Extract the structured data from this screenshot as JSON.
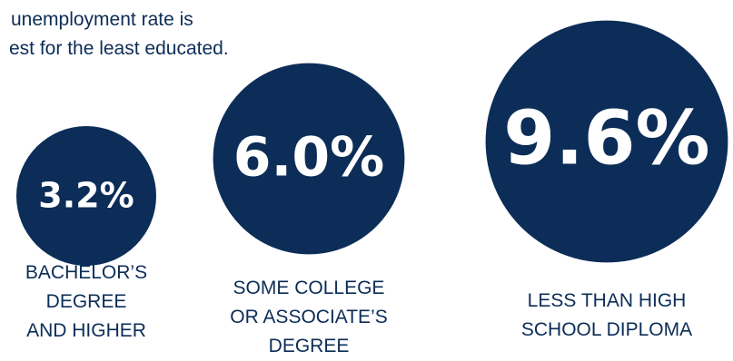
{
  "chart_data": {
    "type": "bubble",
    "title": "unemployment rate is est for the least educated.",
    "title_lines": [
      "unemployment rate is",
      "est for the least educated."
    ],
    "categories": [
      "BACHELOR’S DEGREE AND HIGHER",
      "SOME COLLEGE OR ASSOCIATE’S DEGREE",
      "LESS THAN HIGH SCHOOL DIPLOMA"
    ],
    "category_lines": [
      [
        "BACHELOR’S",
        "DEGREE",
        "AND HIGHER"
      ],
      [
        "SOME COLLEGE",
        "OR ASSOCIATE’S",
        "DEGREE"
      ],
      [
        "LESS THAN HIGH",
        "SCHOOL DIPLOMA"
      ]
    ],
    "values": [
      3.2,
      6.0,
      9.6
    ],
    "value_labels": [
      "3.2%",
      "6.0%",
      "9.6%"
    ],
    "unit": "%",
    "colors": {
      "bubble": "#0c2d57",
      "value_text": "#ffffff",
      "label_text": "#0c2d57",
      "background": "#ffffff"
    }
  }
}
